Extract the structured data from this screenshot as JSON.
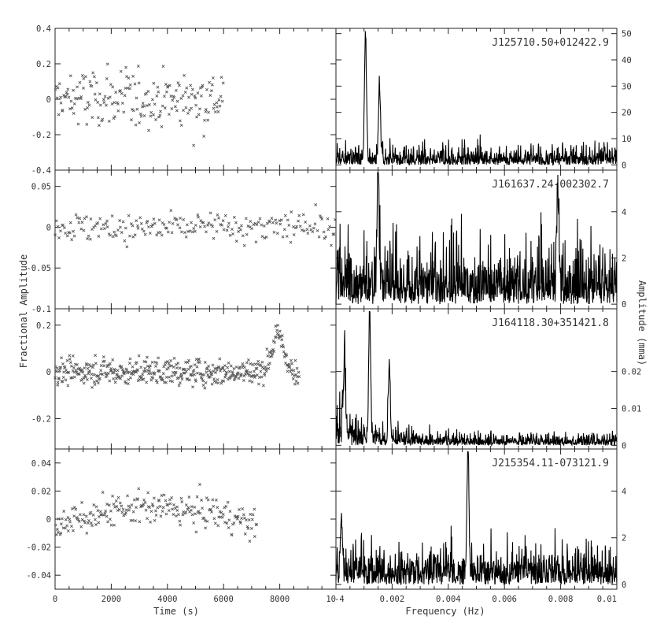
{
  "labels": {
    "left_ylabel": "Fractional Amplitude",
    "right_ylabel": "Amplitude (mma)",
    "left_xlabel": "Time (s)",
    "right_xlabel": "Frequency (Hz)",
    "stray_tick": "-4"
  },
  "chart_data": [
    {
      "type": "scatter",
      "panel": "left-1",
      "ylim": [
        -0.4,
        0.4
      ],
      "yticks": [
        "0.4",
        "0.2",
        "0",
        "-0.2",
        "-0.4"
      ],
      "yticks_v": [
        0.4,
        0.2,
        0,
        -0.2,
        -0.4
      ],
      "xlim": [
        0,
        10000
      ],
      "marker": "x",
      "t_range": [
        0,
        6000
      ],
      "amp": 0.15,
      "trend": "flat",
      "n": 200
    },
    {
      "type": "line",
      "panel": "right-1",
      "title": "J125710.50+012422.9",
      "yticks": [
        "50",
        "40",
        "30",
        "20",
        "10",
        "0"
      ],
      "yticks_v": [
        50,
        40,
        30,
        20,
        10,
        0
      ],
      "ylim": [
        -2,
        52
      ],
      "xlim": [
        0,
        0.01
      ],
      "noise": 6,
      "peaks": [
        {
          "f": 0.00105,
          "a": 48
        },
        {
          "f": 0.00155,
          "a": 28
        }
      ]
    },
    {
      "type": "scatter",
      "panel": "left-2",
      "ylim": [
        -0.1,
        0.07
      ],
      "yticks": [
        "0.05",
        "0",
        "-0.05",
        "-0.1"
      ],
      "yticks_v": [
        0.05,
        0,
        -0.05,
        -0.1
      ],
      "xlim": [
        0,
        10000
      ],
      "marker": "x",
      "t_range": [
        0,
        10000
      ],
      "amp": 0.018,
      "trend": "flat",
      "n": 220
    },
    {
      "type": "line",
      "panel": "right-2",
      "title": "J161637.24-002302.7",
      "yticks": [
        "4",
        "2",
        "0"
      ],
      "yticks_v": [
        4,
        2,
        0
      ],
      "ylim": [
        -0.2,
        5.8
      ],
      "xlim": [
        0,
        0.01
      ],
      "noise": 2.2,
      "peaks": [
        {
          "f": 0.0015,
          "a": 5.5
        },
        {
          "f": 0.0079,
          "a": 4.2
        }
      ]
    },
    {
      "type": "scatter",
      "panel": "left-3",
      "ylim": [
        -0.33,
        0.27
      ],
      "yticks": [
        "0.2",
        "0",
        "-0.2"
      ],
      "yticks_v": [
        0.2,
        0,
        -0.2
      ],
      "xlim": [
        0,
        10000
      ],
      "marker": "x",
      "t_range": [
        0,
        8700
      ],
      "amp": 0.05,
      "trend": "flare",
      "n": 450
    },
    {
      "type": "line",
      "panel": "right-3",
      "title": "J164118.30+351421.8",
      "yticks": [
        "0.02",
        "0.01",
        "0"
      ],
      "yticks_v": [
        0.02,
        0.01,
        0
      ],
      "ylim": [
        -0.001,
        0.037
      ],
      "xlim": [
        0,
        0.01
      ],
      "noise": 0.007,
      "decay": true,
      "peaks": [
        {
          "f": 0.0012,
          "a": 0.034
        },
        {
          "f": 0.0019,
          "a": 0.02
        },
        {
          "f": 0.0003,
          "a": 0.02
        }
      ]
    },
    {
      "type": "scatter",
      "panel": "left-4",
      "ylim": [
        -0.05,
        0.05
      ],
      "yticks": [
        "0.04",
        "0.02",
        "0",
        "-0.02",
        "-0.04"
      ],
      "yticks_v": [
        0.04,
        0.02,
        0,
        -0.02,
        -0.04
      ],
      "xlim": [
        0,
        10000
      ],
      "marker": "x",
      "t_range": [
        0,
        7200
      ],
      "amp": 0.01,
      "trend": "arch",
      "n": 230,
      "xticks": [
        "0",
        "2000",
        "4000",
        "6000",
        "8000",
        "10"
      ],
      "xticks_v": [
        0,
        2000,
        4000,
        6000,
        8000,
        10000
      ]
    },
    {
      "type": "line",
      "panel": "right-4",
      "title": "J215354.11-073121.9",
      "yticks": [
        "4",
        "2",
        "0"
      ],
      "yticks_v": [
        4,
        2,
        0
      ],
      "ylim": [
        -0.2,
        5.8
      ],
      "xlim": [
        0,
        0.01
      ],
      "noise": 1.3,
      "peaks": [
        {
          "f": 0.0047,
          "a": 5.4
        },
        {
          "f": 0.0002,
          "a": 2.5
        }
      ],
      "xticks": [
        "0.002",
        "0.004",
        "0.006",
        "0.008",
        "0.01"
      ],
      "xticks_v": [
        0.002,
        0.004,
        0.006,
        0.008,
        0.01
      ]
    }
  ]
}
